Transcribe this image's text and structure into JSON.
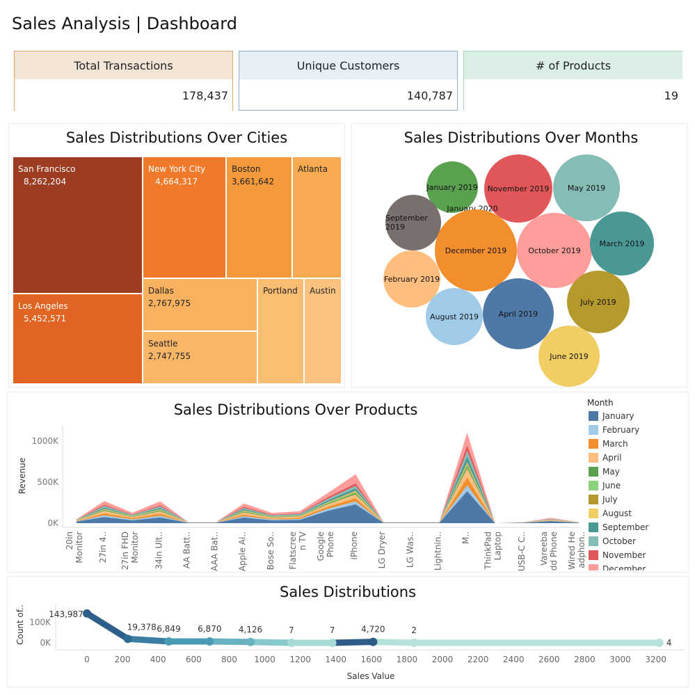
{
  "page": {
    "title": "Sales Analysis | Dashboard"
  },
  "kpis": [
    {
      "label": "Total Transactions",
      "value": "178,437",
      "color": "#f2e5d6",
      "border": "#e6a66a"
    },
    {
      "label": "Unique Customers",
      "value": "140,787",
      "color": "#e6eef6",
      "border": "#8eaed0"
    },
    {
      "label": "# of Products",
      "value": "19",
      "color": "#dcefe6",
      "border": "#9fd4b9"
    }
  ],
  "cities": {
    "title": "Sales Distributions Over Cities",
    "cells": [
      {
        "name": "San Francisco",
        "value": "8,262,204",
        "color": "#9c3c22"
      },
      {
        "name": "Los Angeles",
        "value": "5,452,571",
        "color": "#e16522"
      },
      {
        "name": "New York City",
        "value": "4,664,317",
        "color": "#f07a2a"
      },
      {
        "name": "Boston",
        "value": "3,661,642",
        "color": "#f59a3c"
      },
      {
        "name": "Atlanta",
        "value": "",
        "color": "#f7aa50"
      },
      {
        "name": "Dallas",
        "value": "2,767,975",
        "color": "#f8b15e"
      },
      {
        "name": "Seattle",
        "value": "2,747,755",
        "color": "#f9b666"
      },
      {
        "name": "Portland",
        "value": "",
        "color": "#fbbd72"
      },
      {
        "name": "Austin",
        "value": "",
        "color": "#fcc380"
      }
    ]
  },
  "months_bubbles": {
    "title": "Sales Distributions Over Months",
    "bubbles": [
      {
        "label": "January 2019",
        "color": "#59a14f"
      },
      {
        "label": "November 2019",
        "color": "#e15759"
      },
      {
        "label": "May 2019",
        "color": "#86bcb6"
      },
      {
        "label": "January 2020",
        "color": "#59a14f"
      },
      {
        "label": "September 2019",
        "color": "#79706e"
      },
      {
        "label": "December 2019",
        "color": "#f28e2b"
      },
      {
        "label": "October 2019",
        "color": "#ff9d9a"
      },
      {
        "label": "March 2019",
        "color": "#499894"
      },
      {
        "label": "February 2019",
        "color": "#ffbe7d"
      },
      {
        "label": "July 2019",
        "color": "#b6992d"
      },
      {
        "label": "August 2019",
        "color": "#a0cbe8"
      },
      {
        "label": "April 2019",
        "color": "#4e79a7"
      },
      {
        "label": "June 2019",
        "color": "#f1ce63"
      }
    ]
  },
  "products": {
    "title": "Sales Distributions Over Products",
    "ylabel": "Revenue",
    "yticks": [
      "1000K",
      "500K",
      "0K"
    ],
    "categories": [
      [
        "20in",
        "Monitor"
      ],
      [
        "27in 4.."
      ],
      [
        "27in FHD",
        "Monitor"
      ],
      [
        "34in Ult.."
      ],
      [
        "AA Batt.."
      ],
      [
        "AAA Bat.."
      ],
      [
        "Apple Ai.."
      ],
      [
        "Bose So.."
      ],
      [
        "Flatscree",
        "n TV"
      ],
      [
        "Google",
        "Phone"
      ],
      [
        "iPhone"
      ],
      [
        "LG Dryer"
      ],
      [
        "LG Was.."
      ],
      [
        "Lightnin.."
      ],
      [
        "M.."
      ],
      [
        "ThinkPad",
        "Laptop"
      ],
      [
        "USB-C C.."
      ],
      [
        "Vareeba",
        "dd Phone"
      ],
      [
        "Wired He",
        "adphon.."
      ]
    ],
    "legend_title": "Month",
    "legend": [
      {
        "name": "January",
        "color": "#4e79a7"
      },
      {
        "name": "February",
        "color": "#a0cbe8"
      },
      {
        "name": "March",
        "color": "#f28e2b"
      },
      {
        "name": "April",
        "color": "#ffbe7d"
      },
      {
        "name": "May",
        "color": "#59a14f"
      },
      {
        "name": "June",
        "color": "#8cd17d"
      },
      {
        "name": "July",
        "color": "#b6992d"
      },
      {
        "name": "August",
        "color": "#f1ce63"
      },
      {
        "name": "September",
        "color": "#499894"
      },
      {
        "name": "October",
        "color": "#86bcb6"
      },
      {
        "name": "November",
        "color": "#e15759"
      },
      {
        "name": "December",
        "color": "#ff9d9a"
      }
    ]
  },
  "distribution": {
    "title": "Sales Distributions",
    "ylabel": "Count of..",
    "xlabel": "Sales Value",
    "yticks": [
      "100K",
      "0K"
    ],
    "xticks": [
      "0",
      "200",
      "400",
      "600",
      "800",
      "1000",
      "1200",
      "1400",
      "1600",
      "1800",
      "2000",
      "2200",
      "2400",
      "2600",
      "2800",
      "3000",
      "3200"
    ],
    "labels": [
      "143,987",
      "19,378",
      "6,849",
      "6,870",
      "4,126",
      "7",
      "7",
      "4,720",
      "2",
      "4"
    ]
  },
  "chart_data": [
    {
      "type": "area",
      "title": "Sales Distributions Over Products",
      "ylabel": "Revenue",
      "ylim": [
        0,
        1100000
      ],
      "stacked": true,
      "categories": [
        "20in Monitor",
        "27in 4..",
        "27in FHD Monitor",
        "34in Ult..",
        "AA Batt..",
        "AAA Bat..",
        "Apple Ai..",
        "Bose So..",
        "Flatscreen TV",
        "Google Phone",
        "iPhone",
        "LG Dryer",
        "LG Was..",
        "Lightnin..",
        "M..",
        "ThinkPad Laptop",
        "USB-C C..",
        "Vareebadd Phone",
        "Wired Headphon.."
      ],
      "series": [
        {
          "name": "January",
          "values": [
            20000,
            75000,
            35000,
            70000,
            5000,
            5000,
            70000,
            35000,
            40000,
            150000,
            230000,
            5000,
            5000,
            5000,
            390000,
            0,
            5000,
            25000,
            5000
          ]
        },
        {
          "name": "February",
          "values": [
            3000,
            20000,
            10000,
            20000,
            1000,
            1000,
            15000,
            10000,
            10000,
            25000,
            35000,
            1000,
            1000,
            1000,
            70000,
            0,
            1000,
            5000,
            1000
          ]
        },
        {
          "name": "March",
          "values": [
            4000,
            25000,
            15000,
            25000,
            1000,
            1000,
            20000,
            10000,
            15000,
            25000,
            40000,
            1000,
            1000,
            1000,
            95000,
            0,
            1000,
            5000,
            1000
          ]
        },
        {
          "name": "April",
          "values": [
            5000,
            30000,
            15000,
            30000,
            1000,
            1000,
            25000,
            15000,
            15000,
            30000,
            45000,
            1000,
            1000,
            1000,
            110000,
            0,
            1000,
            5000,
            1000
          ]
        },
        {
          "name": "May",
          "values": [
            2000,
            10000,
            5000,
            10000,
            500,
            500,
            10000,
            5000,
            5000,
            10000,
            15000,
            500,
            500,
            500,
            30000,
            0,
            500,
            2000,
            500
          ]
        },
        {
          "name": "June",
          "values": [
            1000,
            5000,
            3000,
            5000,
            500,
            500,
            5000,
            3000,
            3000,
            5000,
            10000,
            500,
            500,
            500,
            15000,
            0,
            500,
            1000,
            500
          ]
        },
        {
          "name": "July",
          "values": [
            1000,
            5000,
            3000,
            5000,
            500,
            500,
            5000,
            3000,
            3000,
            5000,
            10000,
            500,
            500,
            500,
            15000,
            0,
            500,
            1000,
            500
          ]
        },
        {
          "name": "August",
          "values": [
            1000,
            5000,
            3000,
            5000,
            500,
            500,
            5000,
            3000,
            3000,
            5000,
            10000,
            500,
            500,
            500,
            15000,
            0,
            500,
            1000,
            500
          ]
        },
        {
          "name": "September",
          "values": [
            2000,
            15000,
            5000,
            15000,
            500,
            500,
            15000,
            5000,
            8000,
            20000,
            30000,
            500,
            500,
            500,
            70000,
            0,
            500,
            3000,
            500
          ]
        },
        {
          "name": "October",
          "values": [
            2000,
            20000,
            8000,
            20000,
            500,
            500,
            15000,
            8000,
            10000,
            20000,
            30000,
            500,
            500,
            500,
            70000,
            0,
            500,
            3000,
            500
          ]
        },
        {
          "name": "November",
          "values": [
            2000,
            15000,
            5000,
            15000,
            500,
            500,
            15000,
            8000,
            8000,
            20000,
            30000,
            500,
            500,
            500,
            70000,
            0,
            500,
            3000,
            500
          ]
        },
        {
          "name": "December",
          "values": [
            5000,
            45000,
            20000,
            45000,
            1000,
            1000,
            40000,
            20000,
            25000,
            50000,
            110000,
            1000,
            1000,
            1000,
            150000,
            0,
            1000,
            10000,
            1000
          ]
        }
      ]
    },
    {
      "type": "line",
      "title": "Sales Distributions",
      "xlabel": "Sales Value",
      "ylabel": "Count of..",
      "xlim": [
        -50,
        3300
      ],
      "ylim": [
        0,
        150000
      ],
      "x": [
        0,
        230,
        460,
        690,
        920,
        1150,
        1380,
        1610,
        1840,
        3220
      ],
      "values": [
        143987,
        19378,
        6849,
        6870,
        4126,
        7,
        7,
        4720,
        2,
        4
      ],
      "labels": [
        "143,987",
        "19,378",
        "6,849",
        "6,870",
        "4,126",
        "7",
        "7",
        "4,720",
        "2",
        "4"
      ]
    }
  ]
}
